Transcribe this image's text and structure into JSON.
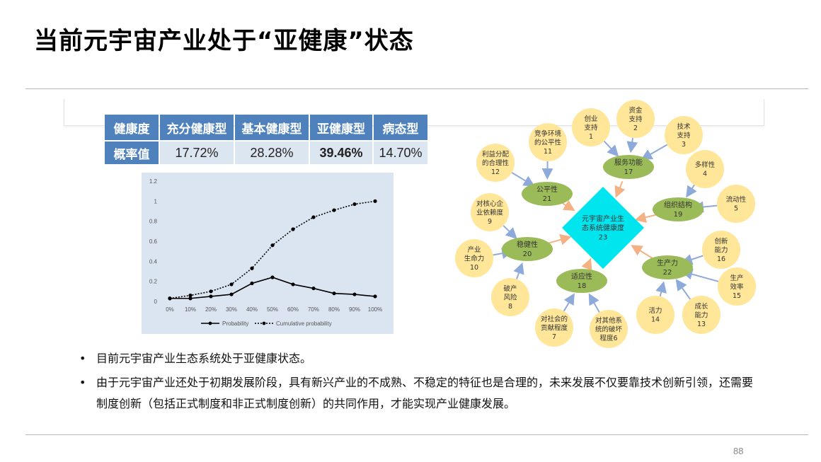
{
  "title": "当前元宇宙产业处于“亚健康”状态",
  "table": {
    "headers": [
      "健康度",
      "充分健康型",
      "基本健康型",
      "亚健康型",
      "病态型"
    ],
    "row_label": "概率值",
    "values": [
      "17.72%",
      "28.28%",
      "39.46%",
      "14.70%"
    ]
  },
  "chart_data": {
    "type": "line",
    "x": [
      "0%",
      "10%",
      "20%",
      "30%",
      "40%",
      "50%",
      "60%",
      "70%",
      "80%",
      "90%",
      "100%"
    ],
    "series": [
      {
        "name": "Probability",
        "style": "solid",
        "values": [
          0.03,
          0.03,
          0.05,
          0.07,
          0.18,
          0.24,
          0.17,
          0.13,
          0.08,
          0.07,
          0.05
        ]
      },
      {
        "name": "Cumulative probability",
        "style": "dotted",
        "values": [
          0.03,
          0.06,
          0.1,
          0.17,
          0.33,
          0.56,
          0.72,
          0.84,
          0.91,
          0.97,
          1.0
        ]
      }
    ],
    "yticks": [
      "0",
      "0.2",
      "0.4",
      "0.6",
      "0.8",
      "1",
      "1.2"
    ],
    "ylim": [
      0,
      1.2
    ],
    "grid": false,
    "legend": "bottom"
  },
  "diagram": {
    "center": {
      "text": [
        "元宇宙产业生",
        "态系统健康度",
        "23"
      ]
    },
    "green_nodes": [
      {
        "id": "n17",
        "text": [
          "服务功能",
          "17"
        ]
      },
      {
        "id": "n21",
        "text": [
          "公平性",
          "21"
        ]
      },
      {
        "id": "n19",
        "text": [
          "组织结构",
          "19"
        ]
      },
      {
        "id": "n20",
        "text": [
          "稳健性",
          "20"
        ]
      },
      {
        "id": "n18",
        "text": [
          "适应性",
          "18"
        ]
      },
      {
        "id": "n22",
        "text": [
          "生产力",
          "22"
        ]
      }
    ],
    "yellow_nodes": [
      {
        "id": "y1",
        "text": [
          "创业",
          "支持",
          "1"
        ]
      },
      {
        "id": "y2",
        "text": [
          "资金",
          "支持",
          "2"
        ]
      },
      {
        "id": "y3",
        "text": [
          "技术",
          "支持",
          "3"
        ]
      },
      {
        "id": "y11",
        "text": [
          "竞争环境",
          "的公平性",
          "11"
        ]
      },
      {
        "id": "y12",
        "text": [
          "利益分配",
          "的合理性",
          "12"
        ]
      },
      {
        "id": "y4",
        "text": [
          "多样性",
          "4"
        ]
      },
      {
        "id": "y5",
        "text": [
          "流动性",
          "5"
        ]
      },
      {
        "id": "y9",
        "text": [
          "对核心企",
          "业依赖度",
          "9"
        ]
      },
      {
        "id": "y10",
        "text": [
          "产业",
          "生命力",
          "10"
        ]
      },
      {
        "id": "y8",
        "text": [
          "破产",
          "风险",
          "8"
        ]
      },
      {
        "id": "y7",
        "text": [
          "对社会的",
          "贡献程度",
          "7"
        ]
      },
      {
        "id": "y6",
        "text": [
          "对其他系",
          "统的破坏",
          "程度6"
        ]
      },
      {
        "id": "y16",
        "text": [
          "创新",
          "能力",
          "16"
        ]
      },
      {
        "id": "y15",
        "text": [
          "生产",
          "效率",
          "15"
        ]
      },
      {
        "id": "y14",
        "text": [
          "活力",
          "14"
        ]
      },
      {
        "id": "y13",
        "text": [
          "成长",
          "能力",
          "13"
        ]
      }
    ]
  },
  "bullets": [
    "目前元宇宙产业生态系统处于亚健康状态。",
    "由于元宇宙产业还处于初期发展阶段，具有新兴产业的不成熟、不稳定的特征也是合理的，未来发展不仅要靠技术创新引领，还需要制度创新（包括正式制度和非正式制度创新）的共同作用，才能实现产业健康发展。"
  ],
  "bullet_symbol": "•",
  "page_number": "88",
  "colors": {
    "header_blue": "#4f81bd",
    "cell_blue": "#dce6f1",
    "chart_bg": "#dbe5f1",
    "center_cyan": "#00e5ee",
    "green_node": "#9bbb59",
    "yellow_node": "#ffe699",
    "blue_arrow": "#8eaadb",
    "orange_arrow": "#f4b183"
  }
}
